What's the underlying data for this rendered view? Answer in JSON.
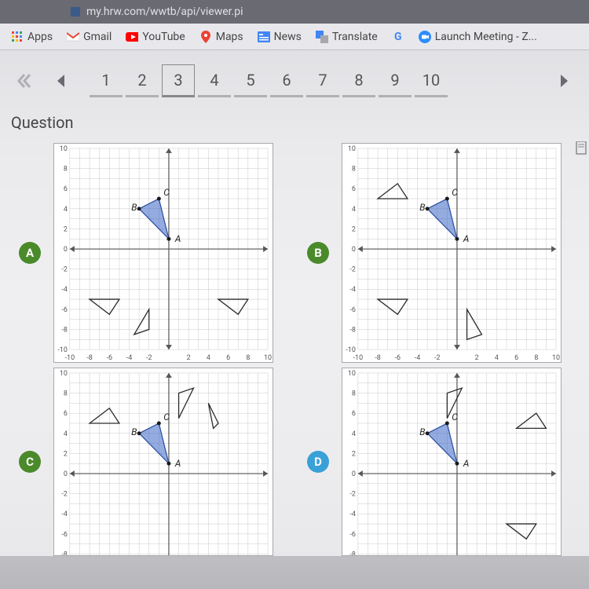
{
  "url": "my.hrw.com/wwtb/api/viewer.pi",
  "bookmarks": {
    "apps": "Apps",
    "gmail": "Gmail",
    "youtube": "YouTube",
    "maps": "Maps",
    "news": "News",
    "translate": "Translate",
    "launch": "Launch Meeting - Z..."
  },
  "pager": {
    "items": [
      "1",
      "2",
      "3",
      "4",
      "5",
      "6",
      "7",
      "8",
      "9",
      "10"
    ],
    "current": "3"
  },
  "heading": "Question",
  "axis": {
    "xmin": -10,
    "xmax": 10,
    "ymin": -10,
    "ymax": 10,
    "step": 2,
    "grid_color": "#c8c8cc",
    "axis_color": "#555"
  },
  "base_triangle": {
    "A": [
      0,
      1
    ],
    "B": [
      -3,
      4
    ],
    "C": [
      -1,
      5
    ],
    "fill": "#3a66c4",
    "opacity": 0.55,
    "stroke": "#2a4aa0"
  },
  "options": {
    "A": {
      "badge_color": "#4a8a2a",
      "outlines": [
        [
          [
            -8,
            -5
          ],
          [
            -6,
            -6.5
          ],
          [
            -5,
            -5
          ]
        ],
        [
          [
            -2,
            -6
          ],
          [
            -3.5,
            -8.5
          ],
          [
            -2,
            -8
          ]
        ],
        [
          [
            5,
            -5
          ],
          [
            7,
            -6.5
          ],
          [
            8,
            -5
          ]
        ]
      ]
    },
    "B": {
      "badge_color": "#4a8a2a",
      "outlines": [
        [
          [
            -8,
            5
          ],
          [
            -6,
            6.5
          ],
          [
            -5,
            5
          ]
        ],
        [
          [
            -8,
            -5
          ],
          [
            -6,
            -6.5
          ],
          [
            -5,
            -5
          ]
        ],
        [
          [
            1,
            -6
          ],
          [
            2.5,
            -8.5
          ],
          [
            1,
            -9
          ]
        ]
      ]
    },
    "C": {
      "badge_color": "#4a8a2a",
      "outlines": [
        [
          [
            -8,
            5
          ],
          [
            -6,
            6.5
          ],
          [
            -5,
            5
          ]
        ],
        [
          [
            1,
            5.5
          ],
          [
            2.5,
            8.5
          ],
          [
            1,
            8
          ]
        ],
        [
          [
            4,
            7
          ],
          [
            5,
            5
          ],
          [
            4.5,
            4.5
          ]
        ]
      ]
    },
    "D": {
      "badge_color": "#3aa0d8",
      "outlines": [
        [
          [
            -1,
            5.5
          ],
          [
            0.5,
            8.5
          ],
          [
            -1,
            8
          ]
        ],
        [
          [
            6,
            4.5
          ],
          [
            8,
            6
          ],
          [
            9,
            4.5
          ]
        ],
        [
          [
            5,
            -5
          ],
          [
            7,
            -6.5
          ],
          [
            8,
            -5
          ]
        ]
      ]
    }
  }
}
